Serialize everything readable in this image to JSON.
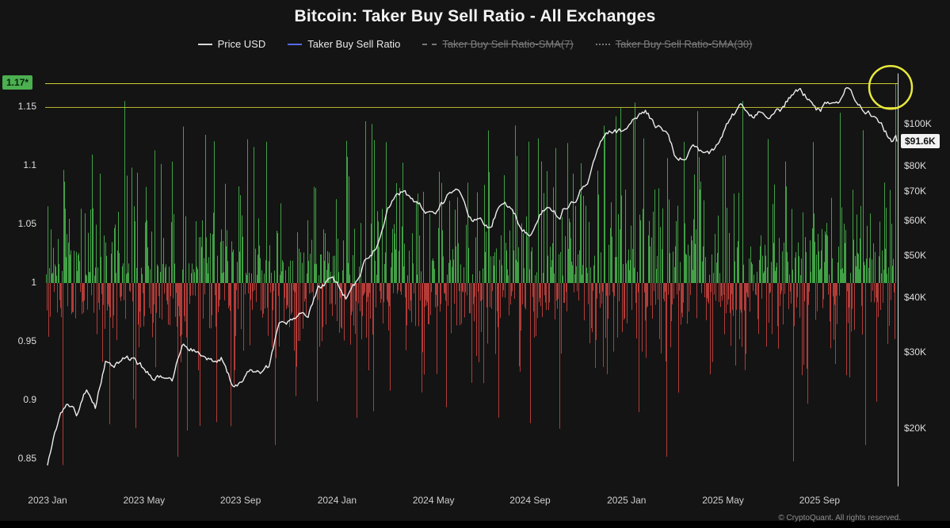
{
  "page": {
    "footer": "© CryptoQuant. All rights reserved."
  },
  "legend": {
    "items": [
      {
        "label": "Price USD",
        "color": "#d9d9d9",
        "line_style": "solid",
        "active": true
      },
      {
        "label": "Taker Buy Sell Ratio",
        "color": "#5569e8",
        "line_style": "solid",
        "active": true
      },
      {
        "label": "Taker Buy Sell Ratio-SMA(7)",
        "color": "#787878",
        "line_style": "dashed",
        "active": false
      },
      {
        "label": "Taker Buy Sell Ratio-SMA(30)",
        "color": "#787878",
        "line_style": "dotted",
        "active": false
      }
    ]
  },
  "chart_data": {
    "type": "mixed",
    "title": "Bitcoin: Taker Buy Sell Ratio - All Exchanges",
    "x_axis": {
      "span_months": 35.2,
      "ticks": [
        {
          "label": "2023 Jan",
          "month": 0
        },
        {
          "label": "2023 May",
          "month": 4
        },
        {
          "label": "2023 Sep",
          "month": 8
        },
        {
          "label": "2024 Jan",
          "month": 12
        },
        {
          "label": "2024 May",
          "month": 16
        },
        {
          "label": "2024 Sep",
          "month": 20
        },
        {
          "label": "2025 Jan",
          "month": 24
        },
        {
          "label": "2025 May",
          "month": 28
        },
        {
          "label": "2025 Sep",
          "month": 32
        }
      ]
    },
    "left_axis": {
      "name": "Taker Buy Sell Ratio",
      "scale": "linear",
      "range": [
        0.83,
        1.18
      ],
      "ticks": [
        {
          "label": "1.15",
          "value": 1.15
        },
        {
          "label": "1.1",
          "value": 1.1
        },
        {
          "label": "1.05",
          "value": 1.05
        },
        {
          "label": "1",
          "value": 1
        },
        {
          "label": "0.95",
          "value": 0.95
        },
        {
          "label": "0.9",
          "value": 0.9
        },
        {
          "label": "0.85",
          "value": 0.85
        }
      ],
      "current": {
        "label": "1.17*",
        "value": 1.17,
        "badge_color": "#4caf50"
      }
    },
    "right_axis": {
      "name": "Price USD",
      "scale": "log",
      "range": [
        15000,
        130000
      ],
      "ticks": [
        {
          "label": "$100K",
          "value": 100000
        },
        {
          "label": "$80K",
          "value": 80000
        },
        {
          "label": "$70K",
          "value": 70000
        },
        {
          "label": "$60K",
          "value": 60000
        },
        {
          "label": "$50K",
          "value": 50000
        },
        {
          "label": "$40K",
          "value": 40000
        },
        {
          "label": "$30K",
          "value": 30000
        },
        {
          "label": "$20K",
          "value": 20000
        }
      ],
      "current": {
        "label": "$91.6K",
        "value": 91600
      }
    },
    "price_series": {
      "name": "Price USD",
      "color": "#ededed",
      "anchors_month_usdk": [
        [
          0,
          16.6
        ],
        [
          0.4,
          20.5
        ],
        [
          0.8,
          23.0
        ],
        [
          1.2,
          21.6
        ],
        [
          1.6,
          24.6
        ],
        [
          2.0,
          22.3
        ],
        [
          2.4,
          28.2
        ],
        [
          2.8,
          28.4
        ],
        [
          3.2,
          30.0
        ],
        [
          3.6,
          29.2
        ],
        [
          4.0,
          27.6
        ],
        [
          4.4,
          26.8
        ],
        [
          4.8,
          27.2
        ],
        [
          5.2,
          26.6
        ],
        [
          5.6,
          30.6
        ],
        [
          6.0,
          30.4
        ],
        [
          6.4,
          29.8
        ],
        [
          6.8,
          29.2
        ],
        [
          7.2,
          29.4
        ],
        [
          7.6,
          26.0
        ],
        [
          8.0,
          25.8
        ],
        [
          8.4,
          26.5
        ],
        [
          8.8,
          26.9
        ],
        [
          9.2,
          27.6
        ],
        [
          9.6,
          33.9
        ],
        [
          10.0,
          34.7
        ],
        [
          10.4,
          36.8
        ],
        [
          10.8,
          37.4
        ],
        [
          11.2,
          41.5
        ],
        [
          11.6,
          43.8
        ],
        [
          12.0,
          42.8
        ],
        [
          12.4,
          40.0
        ],
        [
          12.8,
          42.5
        ],
        [
          13.2,
          48.0
        ],
        [
          13.6,
          52.0
        ],
        [
          14.0,
          61.5
        ],
        [
          14.4,
          69.0
        ],
        [
          14.8,
          70.8
        ],
        [
          15.2,
          66.5
        ],
        [
          15.6,
          63.8
        ],
        [
          16.0,
          60.8
        ],
        [
          16.4,
          65.0
        ],
        [
          16.8,
          69.2
        ],
        [
          17.2,
          67.7
        ],
        [
          17.6,
          61.3
        ],
        [
          18.0,
          61.0
        ],
        [
          18.4,
          57.0
        ],
        [
          18.8,
          66.5
        ],
        [
          19.2,
          64.6
        ],
        [
          19.6,
          59.4
        ],
        [
          20.0,
          57.3
        ],
        [
          20.4,
          63.2
        ],
        [
          20.8,
          65.8
        ],
        [
          21.2,
          62.1
        ],
        [
          21.6,
          67.0
        ],
        [
          22.0,
          69.4
        ],
        [
          22.4,
          76.0
        ],
        [
          22.8,
          91.0
        ],
        [
          23.2,
          97.5
        ],
        [
          23.6,
          95.9
        ],
        [
          24.0,
          94.4
        ],
        [
          24.4,
          102.1
        ],
        [
          24.8,
          104.8
        ],
        [
          25.2,
          97.6
        ],
        [
          25.6,
          96.1
        ],
        [
          26.0,
          84.4
        ],
        [
          26.4,
          82.9
        ],
        [
          26.8,
          87.2
        ],
        [
          27.2,
          83.1
        ],
        [
          27.6,
          85.2
        ],
        [
          28.0,
          94.2
        ],
        [
          28.4,
          103.3
        ],
        [
          28.8,
          109.0
        ],
        [
          29.2,
          104.1
        ],
        [
          29.6,
          105.7
        ],
        [
          30.0,
          107.3
        ],
        [
          30.4,
          108.5
        ],
        [
          30.8,
          118.0
        ],
        [
          31.2,
          117.4
        ],
        [
          31.6,
          113.2
        ],
        [
          32.0,
          108.2
        ],
        [
          32.4,
          112.5
        ],
        [
          32.8,
          114.0
        ],
        [
          33.1,
          121.5
        ],
        [
          33.5,
          113.8
        ],
        [
          33.9,
          106.3
        ],
        [
          34.3,
          103.0
        ],
        [
          34.7,
          96.4
        ],
        [
          35.0,
          90.2
        ],
        [
          35.2,
          91.6
        ]
      ],
      "latest_usd": 91600,
      "wiggle_seed": 913
    },
    "ratio_series": {
      "name": "Taker Buy Sell Ratio",
      "up_color": "#42a046",
      "down_color": "#b23c39",
      "baseline": 1,
      "bars": 1058,
      "noise_seed": 77,
      "typical_up_dev": 0.034,
      "typical_down_dev": 0.026,
      "min": 0.843,
      "max": 1.17,
      "latest": 1.17,
      "key_extremes_frac_value": [
        [
          0.02,
          0.845
        ],
        [
          0.093,
          1.155
        ],
        [
          0.155,
          0.852
        ],
        [
          0.27,
          0.862
        ],
        [
          0.4,
          1.12
        ],
        [
          0.52,
          1.13
        ],
        [
          0.6,
          1.115
        ],
        [
          0.73,
          0.852
        ],
        [
          0.82,
          1.155
        ],
        [
          0.88,
          0.848
        ],
        [
          0.935,
          1.145
        ],
        [
          0.965,
          0.862
        ],
        [
          1.0,
          1.17
        ]
      ]
    },
    "annotations": {
      "hlines": [
        {
          "value": 1.17,
          "color": "#d8d832"
        },
        {
          "value": 1.15,
          "color": "#bdbd2e"
        }
      ],
      "vline_at_latest": {
        "color": "#dcdcdc"
      },
      "highlight_circle": {
        "ratio_value": 1.17,
        "color": "#e9e93c"
      }
    }
  }
}
